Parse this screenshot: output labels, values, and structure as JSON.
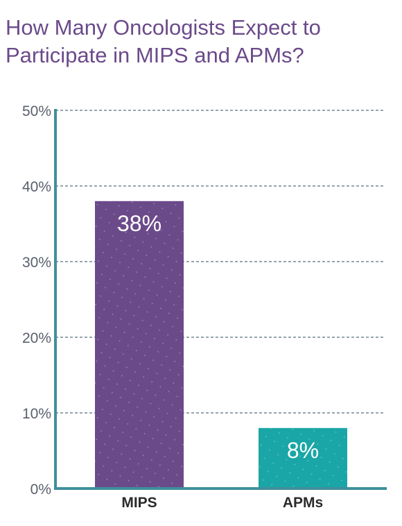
{
  "title_lines": [
    "How Many Oncologists Expect to",
    "Participate in MIPS and APMs?"
  ],
  "chart_data": {
    "type": "bar",
    "title": "How Many Oncologists Expect to Participate in MIPS and APMs?",
    "categories": [
      "MIPS",
      "APMs"
    ],
    "values": [
      38,
      8
    ],
    "data_labels": [
      "38%",
      "8%"
    ],
    "bar_colors": [
      "#6b4a8a",
      "#1aa6a6"
    ],
    "axis_color": "#3f8f9c",
    "ylim": [
      0,
      50
    ],
    "yticks": [
      0,
      10,
      20,
      30,
      40,
      50
    ],
    "ytick_labels": [
      "0%",
      "10%",
      "20%",
      "30%",
      "40%",
      "50%"
    ],
    "xlabel": "",
    "ylabel": "",
    "grid": true,
    "legend": "none"
  }
}
